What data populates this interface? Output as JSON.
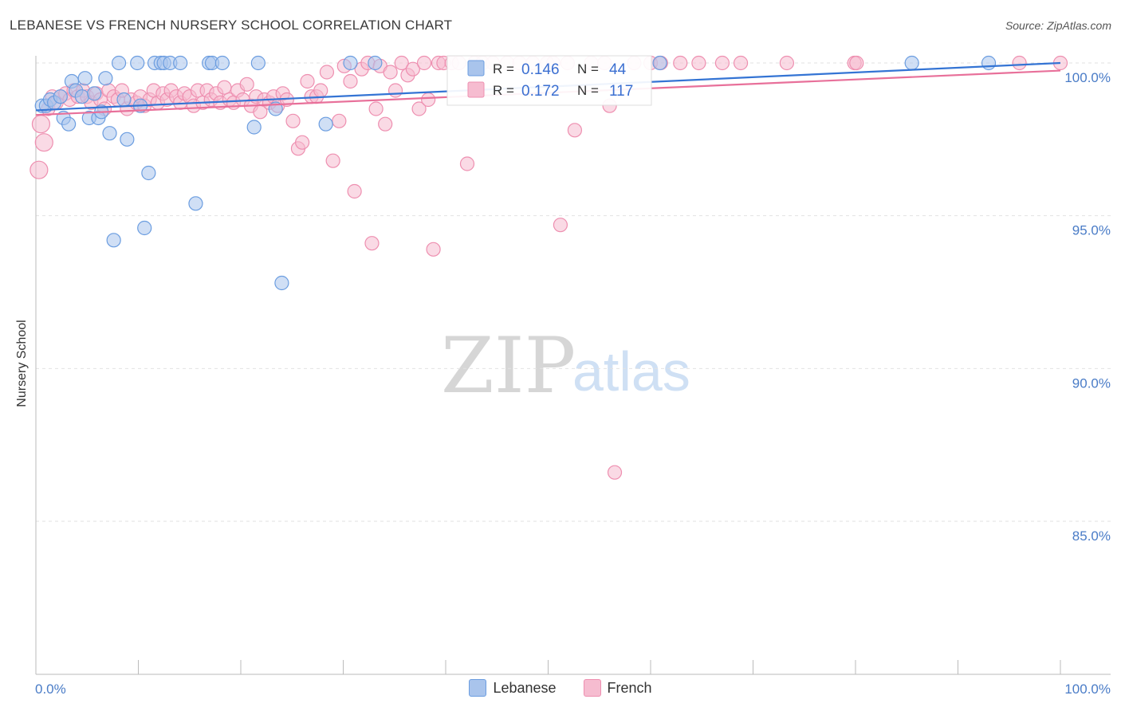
{
  "title": "LEBANESE VS FRENCH NURSERY SCHOOL CORRELATION CHART",
  "source": "Source: ZipAtlas.com",
  "watermark": {
    "zip": "ZIP",
    "atlas": "atlas"
  },
  "colors": {
    "blue_fill": "#a9c4ec",
    "blue_stroke": "#6b9de0",
    "blue_line": "#3474d4",
    "pink_fill": "#f6bcd0",
    "pink_stroke": "#ee8fb0",
    "pink_line": "#e8709a",
    "grid": "#e2e2e2",
    "tick_text": "#4a7cc7"
  },
  "legend_top": {
    "rows": [
      {
        "series": "Lebanese",
        "r_label": "R = ",
        "r_value": "0.146",
        "n_label": "N = ",
        "n_value": "44"
      },
      {
        "series": "French",
        "r_label": "R = ",
        "r_value": "0.172",
        "n_label": "N = ",
        "n_value": "117"
      }
    ]
  },
  "legend_bottom": [
    {
      "label": "Lebanese"
    },
    {
      "label": "French"
    }
  ],
  "chart_data": {
    "type": "scatter",
    "title": "LEBANESE VS FRENCH NURSERY SCHOOL CORRELATION CHART",
    "xlabel": "",
    "ylabel": "Nursery School",
    "xlim": [
      0,
      100
    ],
    "ylim": [
      80.5,
      100.45
    ],
    "x_tick_labels": [
      "0.0%",
      "100.0%"
    ],
    "y_ticks": [
      {
        "value": 100,
        "label": "100.0%"
      },
      {
        "value": 95,
        "label": "95.0%"
      },
      {
        "value": 90,
        "label": "90.0%"
      },
      {
        "value": 85,
        "label": "85.0%"
      }
    ],
    "series": [
      {
        "name": "Lebanese",
        "r": 0.146,
        "n": 44,
        "trend": {
          "x": [
            0,
            100
          ],
          "y": [
            98.45,
            100.0
          ]
        },
        "points": [
          [
            0.6,
            98.6
          ],
          [
            1.0,
            98.6
          ],
          [
            1.4,
            98.8
          ],
          [
            1.8,
            98.7
          ],
          [
            2.4,
            98.9
          ],
          [
            2.7,
            98.2
          ],
          [
            3.2,
            98.0
          ],
          [
            3.5,
            99.4
          ],
          [
            3.9,
            99.1
          ],
          [
            4.5,
            98.9
          ],
          [
            4.8,
            99.5
          ],
          [
            5.2,
            98.2
          ],
          [
            5.7,
            99.0
          ],
          [
            6.1,
            98.2
          ],
          [
            6.4,
            98.4
          ],
          [
            6.8,
            99.5
          ],
          [
            7.2,
            97.7
          ],
          [
            7.6,
            94.2
          ],
          [
            8.1,
            100.0
          ],
          [
            8.6,
            98.8
          ],
          [
            8.9,
            97.5
          ],
          [
            9.9,
            100.0
          ],
          [
            10.2,
            98.6
          ],
          [
            10.6,
            94.6
          ],
          [
            11.0,
            96.4
          ],
          [
            11.6,
            100.0
          ],
          [
            12.2,
            100.0
          ],
          [
            12.5,
            100.0
          ],
          [
            13.1,
            100.0
          ],
          [
            14.1,
            100.0
          ],
          [
            15.6,
            95.4
          ],
          [
            16.9,
            100.0
          ],
          [
            17.2,
            100.0
          ],
          [
            18.2,
            100.0
          ],
          [
            21.3,
            97.9
          ],
          [
            21.7,
            100.0
          ],
          [
            23.4,
            98.5
          ],
          [
            24.0,
            92.8
          ],
          [
            28.3,
            98.0
          ],
          [
            30.7,
            100.0
          ],
          [
            33.1,
            100.0
          ],
          [
            60.9,
            100.0
          ],
          [
            85.5,
            100.0
          ],
          [
            93.0,
            100.0
          ]
        ]
      },
      {
        "name": "French",
        "r": 0.172,
        "n": 117,
        "trend": {
          "x": [
            0,
            100
          ],
          "y": [
            98.3,
            99.75
          ]
        },
        "points": [
          [
            0.3,
            96.5
          ],
          [
            0.5,
            98.0
          ],
          [
            0.8,
            97.4
          ],
          [
            1.2,
            98.5
          ],
          [
            1.6,
            98.9
          ],
          [
            2.0,
            98.7
          ],
          [
            2.4,
            98.9
          ],
          [
            2.9,
            99.0
          ],
          [
            3.3,
            98.8
          ],
          [
            3.7,
            99.1
          ],
          [
            4.1,
            98.9
          ],
          [
            4.6,
            99.1
          ],
          [
            5.0,
            98.9
          ],
          [
            5.4,
            98.7
          ],
          [
            5.9,
            99.0
          ],
          [
            6.3,
            98.8
          ],
          [
            6.7,
            98.5
          ],
          [
            7.1,
            99.1
          ],
          [
            7.6,
            98.9
          ],
          [
            8.0,
            98.8
          ],
          [
            8.4,
            99.1
          ],
          [
            8.9,
            98.5
          ],
          [
            9.3,
            98.8
          ],
          [
            9.8,
            98.7
          ],
          [
            10.2,
            98.9
          ],
          [
            10.6,
            98.6
          ],
          [
            11.1,
            98.8
          ],
          [
            11.5,
            99.1
          ],
          [
            11.9,
            98.7
          ],
          [
            12.4,
            99.0
          ],
          [
            12.8,
            98.8
          ],
          [
            13.2,
            99.1
          ],
          [
            13.7,
            98.9
          ],
          [
            14.1,
            98.7
          ],
          [
            14.5,
            99.0
          ],
          [
            15.0,
            98.9
          ],
          [
            15.4,
            98.6
          ],
          [
            15.8,
            99.1
          ],
          [
            16.3,
            98.7
          ],
          [
            16.7,
            99.1
          ],
          [
            17.1,
            98.8
          ],
          [
            17.6,
            99.0
          ],
          [
            18.0,
            98.7
          ],
          [
            18.4,
            99.2
          ],
          [
            18.9,
            98.8
          ],
          [
            19.3,
            98.7
          ],
          [
            19.7,
            99.1
          ],
          [
            20.2,
            98.8
          ],
          [
            20.6,
            99.3
          ],
          [
            21.0,
            98.6
          ],
          [
            21.5,
            98.9
          ],
          [
            21.9,
            98.4
          ],
          [
            22.3,
            98.8
          ],
          [
            22.8,
            98.7
          ],
          [
            23.2,
            98.9
          ],
          [
            23.6,
            98.6
          ],
          [
            24.1,
            99.0
          ],
          [
            24.5,
            98.8
          ],
          [
            25.1,
            98.1
          ],
          [
            25.6,
            97.2
          ],
          [
            26.0,
            97.4
          ],
          [
            26.5,
            99.4
          ],
          [
            26.9,
            98.9
          ],
          [
            27.4,
            98.9
          ],
          [
            27.8,
            99.1
          ],
          [
            28.4,
            99.7
          ],
          [
            29.0,
            96.8
          ],
          [
            29.6,
            98.1
          ],
          [
            30.1,
            99.9
          ],
          [
            30.7,
            99.4
          ],
          [
            31.1,
            95.8
          ],
          [
            31.8,
            99.8
          ],
          [
            32.4,
            100.0
          ],
          [
            32.8,
            94.1
          ],
          [
            33.2,
            98.5
          ],
          [
            33.6,
            99.9
          ],
          [
            34.1,
            98.0
          ],
          [
            34.6,
            99.7
          ],
          [
            35.1,
            99.1
          ],
          [
            35.7,
            100.0
          ],
          [
            36.3,
            99.6
          ],
          [
            36.8,
            99.8
          ],
          [
            37.4,
            98.5
          ],
          [
            37.9,
            100.0
          ],
          [
            38.3,
            98.8
          ],
          [
            38.8,
            93.9
          ],
          [
            39.3,
            100.0
          ],
          [
            39.8,
            100.0
          ],
          [
            40.6,
            100.0
          ],
          [
            41.3,
            100.0
          ],
          [
            42.1,
            96.7
          ],
          [
            42.8,
            100.0
          ],
          [
            43.6,
            100.0
          ],
          [
            44.6,
            100.0
          ],
          [
            46.0,
            100.0
          ],
          [
            47.2,
            100.0
          ],
          [
            48.5,
            100.0
          ],
          [
            49.9,
            100.0
          ],
          [
            50.5,
            100.0
          ],
          [
            51.2,
            94.7
          ],
          [
            51.9,
            100.0
          ],
          [
            52.6,
            97.8
          ],
          [
            54.2,
            100.0
          ],
          [
            55.5,
            100.0
          ],
          [
            56.0,
            98.6
          ],
          [
            56.5,
            86.6
          ],
          [
            58.4,
            100.0
          ],
          [
            60.0,
            100.0
          ],
          [
            61.0,
            100.0
          ],
          [
            62.9,
            100.0
          ],
          [
            64.7,
            100.0
          ],
          [
            67.0,
            100.0
          ],
          [
            68.8,
            100.0
          ],
          [
            73.3,
            100.0
          ],
          [
            79.9,
            100.0
          ],
          [
            80.1,
            100.0
          ],
          [
            96.0,
            100.0
          ],
          [
            100.0,
            100.0
          ]
        ]
      }
    ]
  }
}
